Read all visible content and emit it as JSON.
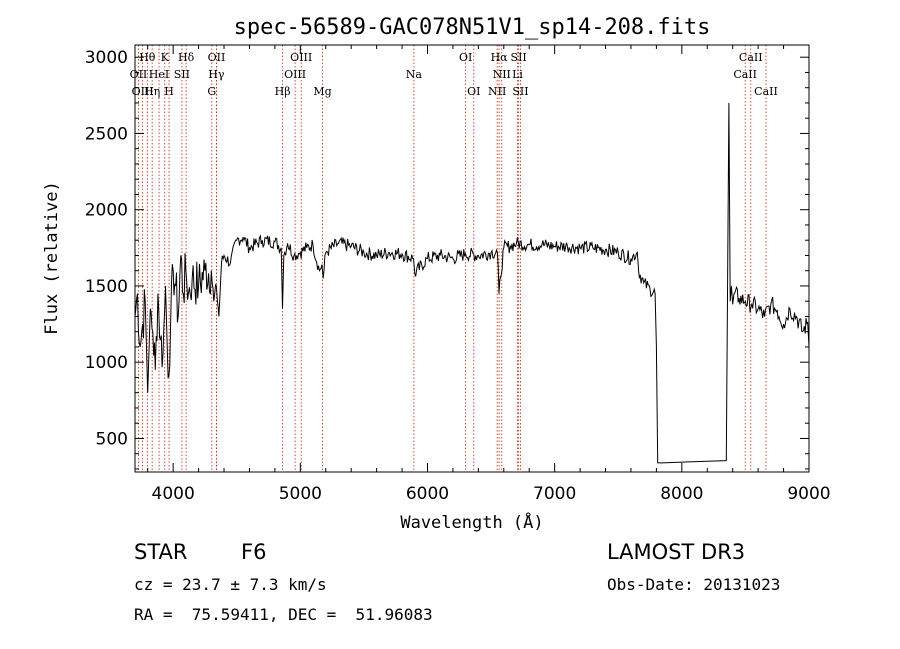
{
  "chart_data": {
    "type": "line",
    "title": "spec-56589-GAC078N51V1_sp14-208.fits",
    "xlabel": "Wavelength (Å)",
    "ylabel": "Flux (relative)",
    "xlim": [
      3700,
      9000
    ],
    "ylim": [
      280,
      3080
    ],
    "xticks": [
      4000,
      5000,
      6000,
      7000,
      8000,
      9000
    ],
    "yticks": [
      500,
      1000,
      1500,
      2000,
      2500,
      3000
    ],
    "series": [
      {
        "name": "flux",
        "x": [
          3700,
          3720,
          3740,
          3760,
          3780,
          3800,
          3820,
          3840,
          3860,
          3880,
          3900,
          3920,
          3940,
          3960,
          3980,
          4000,
          4020,
          4040,
          4060,
          4080,
          4100,
          4120,
          4150,
          4200,
          4250,
          4300,
          4320,
          4340,
          4360,
          4380,
          4400,
          4450,
          4500,
          4550,
          4600,
          4700,
          4800,
          4850,
          4860,
          4870,
          4900,
          4950,
          5000,
          5050,
          5100,
          5150,
          5170,
          5180,
          5200,
          5300,
          5400,
          5500,
          5600,
          5700,
          5800,
          5890,
          5900,
          6000,
          6100,
          6200,
          6300,
          6400,
          6500,
          6550,
          6562,
          6575,
          6600,
          6650,
          6700,
          6800,
          6900,
          7000,
          7100,
          7200,
          7300,
          7400,
          7500,
          7600,
          7650,
          7660,
          7700,
          7750,
          7790,
          7800,
          7810,
          7850,
          8000,
          8200,
          8350,
          8370,
          8380,
          8390,
          8400,
          8410,
          8450,
          8500,
          8550,
          8600,
          8650,
          8700,
          8750,
          8800,
          8850,
          8900,
          8950,
          8990,
          9000
        ],
        "y": [
          1300,
          1450,
          1100,
          1250,
          1400,
          800,
          1350,
          1200,
          950,
          1450,
          1150,
          1050,
          1500,
          900,
          1250,
          1600,
          1500,
          1300,
          1700,
          1450,
          1600,
          1450,
          1550,
          1500,
          1600,
          1600,
          1400,
          1500,
          1300,
          1650,
          1700,
          1650,
          1800,
          1820,
          1750,
          1800,
          1790,
          1750,
          1350,
          1700,
          1780,
          1700,
          1720,
          1750,
          1770,
          1600,
          1640,
          1550,
          1720,
          1780,
          1760,
          1720,
          1700,
          1720,
          1710,
          1680,
          1580,
          1680,
          1700,
          1680,
          1710,
          1700,
          1720,
          1720,
          1450,
          1560,
          1750,
          1760,
          1780,
          1770,
          1770,
          1760,
          1760,
          1750,
          1750,
          1740,
          1720,
          1680,
          1720,
          1600,
          1520,
          1480,
          1450,
          1100,
          340,
          340,
          345,
          350,
          355,
          2700,
          1400,
          1500,
          1380,
          1450,
          1420,
          1400,
          1380,
          1350,
          1300,
          1380,
          1340,
          1250,
          1350,
          1300,
          1200,
          1260,
          1100
        ],
        "color": "#000000"
      }
    ],
    "spectral_lines": [
      {
        "label": "Hθ",
        "x": 3797,
        "row": 0
      },
      {
        "label": "K",
        "x": 3934,
        "row": 0
      },
      {
        "label": "Hδ",
        "x": 4102,
        "row": 0
      },
      {
        "label": "OII",
        "x": 4341,
        "row": 0
      },
      {
        "label": "OIII",
        "x": 5007,
        "row": 0
      },
      {
        "label": "OI",
        "x": 6300,
        "row": 0
      },
      {
        "label": "Hα",
        "x": 6563,
        "row": 0
      },
      {
        "label": "SII",
        "x": 6717,
        "row": 0
      },
      {
        "label": "CaII",
        "x": 8542,
        "row": 0
      },
      {
        "label": "OII",
        "x": 3727,
        "row": 1
      },
      {
        "label": "HeI",
        "x": 3889,
        "row": 1
      },
      {
        "label": "SII",
        "x": 4069,
        "row": 1
      },
      {
        "label": "Hγ",
        "x": 4340,
        "row": 1
      },
      {
        "label": "OIII",
        "x": 4959,
        "row": 1
      },
      {
        "label": "Na",
        "x": 5893,
        "row": 1
      },
      {
        "label": "NII",
        "x": 6584,
        "row": 1
      },
      {
        "label": "Li",
        "x": 6708,
        "row": 1
      },
      {
        "label": "CaII",
        "x": 8498,
        "row": 1
      },
      {
        "label": "OIII",
        "x": 3760,
        "row": 2
      },
      {
        "label": "Hη",
        "x": 3835,
        "row": 2
      },
      {
        "label": "H",
        "x": 3968,
        "row": 2
      },
      {
        "label": "G",
        "x": 4304,
        "row": 2
      },
      {
        "label": "Hβ",
        "x": 4861,
        "row": 2
      },
      {
        "label": "Mg",
        "x": 5175,
        "row": 2
      },
      {
        "label": "OI",
        "x": 6364,
        "row": 2
      },
      {
        "label": "NII",
        "x": 6548,
        "row": 2
      },
      {
        "label": "SII",
        "x": 6731,
        "row": 2
      },
      {
        "label": "CaII",
        "x": 8662,
        "row": 2
      }
    ],
    "line_color": "#cc2200",
    "grid": false,
    "legend": "none"
  },
  "info": {
    "object_class": "STAR",
    "subclass": "F6",
    "survey": "LAMOST DR3",
    "redshift": "cz = 23.7 ± 7.3 km/s",
    "obs_date": "Obs-Date: 20131023",
    "coords": "RA =  75.59411, DEC =  51.96083"
  }
}
